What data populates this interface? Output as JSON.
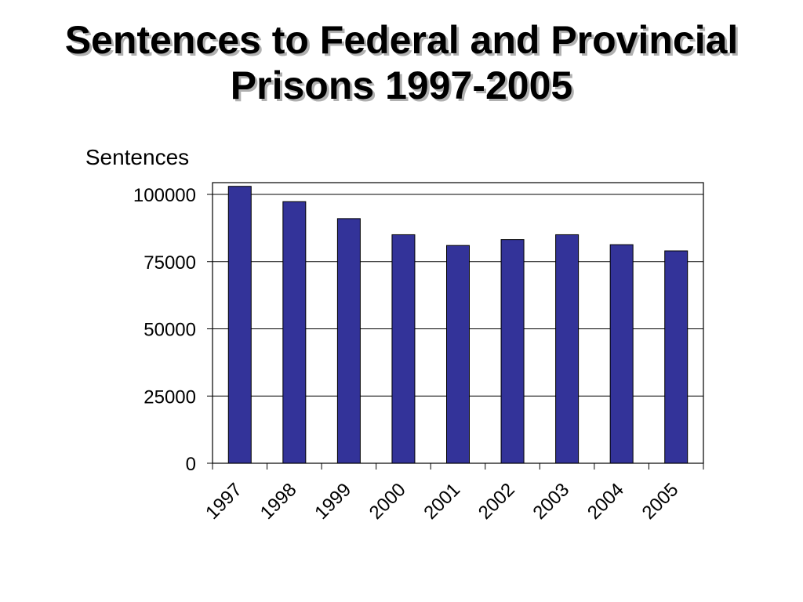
{
  "slide": {
    "title_line1": "Sentences to Federal and Provincial",
    "title_line2": "Prisons 1997-2005"
  },
  "chart_data": {
    "type": "bar",
    "title": "Sentences to Federal and Provincial Prisons 1997-2005",
    "ylabel": "Sentences",
    "xlabel": "",
    "categories": [
      "1997",
      "1998",
      "1999",
      "2000",
      "2001",
      "2002",
      "2003",
      "2004",
      "2005"
    ],
    "series": [
      {
        "values": [
          103000,
          97300,
          91000,
          85000,
          81000,
          83200,
          85000,
          81300,
          79000
        ]
      }
    ],
    "ylim": [
      0,
      100000
    ],
    "yticks": [
      "0",
      "25000",
      "50000",
      "75000",
      "100000"
    ],
    "grid": true,
    "legend": "none",
    "bar_color": "#333399",
    "x_tick_rotation_deg": -45
  }
}
